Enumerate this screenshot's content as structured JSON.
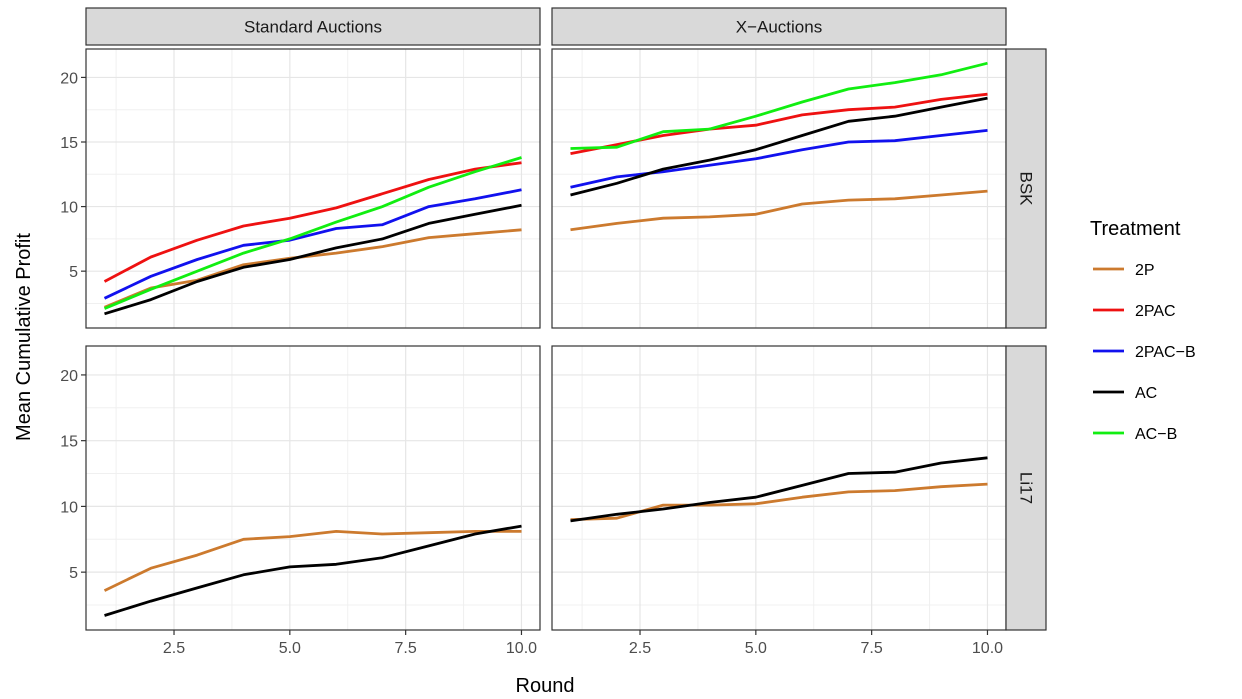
{
  "chart_data": {
    "type": "line",
    "xlabel": "Round",
    "ylabel": "Mean Cumulative Profit",
    "xlim": [
      0.6,
      10.4
    ],
    "ylim": [
      0.6,
      22.2
    ],
    "x_ticks": [
      2.5,
      5.0,
      7.5,
      10.0
    ],
    "x_tick_labels": [
      "2.5",
      "5.0",
      "7.5",
      "10.0"
    ],
    "y_ticks": [
      5,
      10,
      15,
      20
    ],
    "y_tick_labels": [
      "5",
      "10",
      "15",
      "20"
    ],
    "grid": true,
    "legend": {
      "title": "Treatment",
      "placement": "right",
      "entries": [
        "2P",
        "2PAC",
        "2PAC−B",
        "AC",
        "AC−B"
      ]
    },
    "colors": {
      "2P": "#CC7A2E",
      "2PAC": "#EE1111",
      "2PAC−B": "#1111EE",
      "AC": "#000000",
      "AC−B": "#11EE11"
    },
    "col_facets": [
      "Standard Auctions",
      "X−Auctions"
    ],
    "row_facets": [
      "BSK",
      "Li17"
    ],
    "x": [
      1,
      2,
      3,
      4,
      5,
      6,
      7,
      8,
      9,
      10
    ],
    "panels": [
      {
        "col": "Standard Auctions",
        "row": "BSK",
        "series": [
          {
            "name": "2P",
            "values": [
              2.2,
              3.7,
              4.3,
              5.5,
              6.0,
              6.4,
              6.9,
              7.6,
              7.9,
              8.2
            ]
          },
          {
            "name": "2PAC",
            "values": [
              4.2,
              6.1,
              7.4,
              8.5,
              9.1,
              9.9,
              11.0,
              12.1,
              12.9,
              13.4
            ]
          },
          {
            "name": "2PAC−B",
            "values": [
              2.9,
              4.6,
              5.9,
              7.0,
              7.4,
              8.3,
              8.6,
              10.0,
              10.6,
              11.3
            ]
          },
          {
            "name": "AC",
            "values": [
              1.7,
              2.8,
              4.2,
              5.3,
              5.9,
              6.8,
              7.5,
              8.7,
              9.4,
              10.1
            ]
          },
          {
            "name": "AC−B",
            "values": [
              2.1,
              3.6,
              5.0,
              6.4,
              7.5,
              8.8,
              10.0,
              11.5,
              12.7,
              13.8
            ]
          }
        ]
      },
      {
        "col": "X−Auctions",
        "row": "BSK",
        "series": [
          {
            "name": "2P",
            "values": [
              8.2,
              8.7,
              9.1,
              9.2,
              9.4,
              10.2,
              10.5,
              10.6,
              10.9,
              11.2
            ]
          },
          {
            "name": "2PAC",
            "values": [
              14.1,
              14.8,
              15.5,
              16.0,
              16.3,
              17.1,
              17.5,
              17.7,
              18.3,
              18.7
            ]
          },
          {
            "name": "2PAC−B",
            "values": [
              11.5,
              12.3,
              12.7,
              13.2,
              13.7,
              14.4,
              15.0,
              15.1,
              15.5,
              15.9
            ]
          },
          {
            "name": "AC",
            "values": [
              10.9,
              11.8,
              12.9,
              13.6,
              14.4,
              15.5,
              16.6,
              17.0,
              17.7,
              18.4
            ]
          },
          {
            "name": "AC−B",
            "values": [
              14.5,
              14.6,
              15.8,
              16.0,
              17.0,
              18.1,
              19.1,
              19.6,
              20.2,
              21.1
            ]
          }
        ]
      },
      {
        "col": "Standard Auctions",
        "row": "Li17",
        "series": [
          {
            "name": "2P",
            "values": [
              3.6,
              5.3,
              6.3,
              7.5,
              7.7,
              8.1,
              7.9,
              8.0,
              8.1,
              8.1
            ]
          },
          {
            "name": "AC",
            "values": [
              1.7,
              2.8,
              3.8,
              4.8,
              5.4,
              5.6,
              6.1,
              7.0,
              7.9,
              8.5
            ]
          }
        ]
      },
      {
        "col": "X−Auctions",
        "row": "Li17",
        "series": [
          {
            "name": "2P",
            "values": [
              9.0,
              9.1,
              10.1,
              10.1,
              10.2,
              10.7,
              11.1,
              11.2,
              11.5,
              11.7
            ]
          },
          {
            "name": "AC",
            "values": [
              8.9,
              9.4,
              9.8,
              10.3,
              10.7,
              11.6,
              12.5,
              12.6,
              13.3,
              13.7
            ]
          }
        ]
      }
    ]
  }
}
